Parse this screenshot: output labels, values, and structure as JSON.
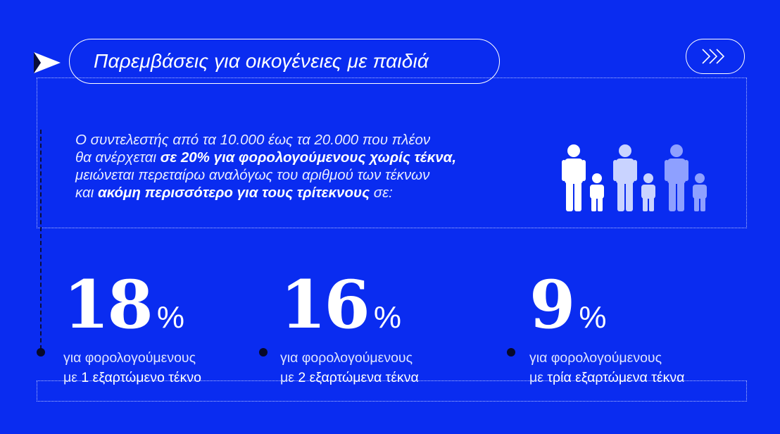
{
  "header": {
    "title": "Παρεμβάσεις για οικογένειες με παιδιά",
    "arrow_icon": "play-arrow-icon",
    "next_icon": "triple-chevron-right-icon"
  },
  "intro": {
    "line1": "Ο συντελεστής από τα 10.000 έως τα 20.000 που πλέον",
    "line2_plain": "θα ανέρχεται ",
    "line2_bold": "σε 20% για φορολογούμενους χωρίς τέκνα,",
    "line3": "μειώνεται περεταίρω αναλόγως του αριθμού των τέκνων",
    "line4_plain_a": "και ",
    "line4_bold": "ακόμη περισσότερο για τους τρίτεκνους",
    "line4_plain_b": " σε:"
  },
  "family_icon": "family-icon",
  "stats": [
    {
      "number": "18",
      "unit": "%",
      "desc1": "για φορολογούμενους",
      "desc2_plain": "με ",
      "desc2_bold": "1 εξαρτώμενο τέκνο"
    },
    {
      "number": "16",
      "unit": "%",
      "desc1": "για φορολογούμενους",
      "desc2_plain": "με ",
      "desc2_bold": "2 εξαρτώμενα τέκνα"
    },
    {
      "number": "9",
      "unit": "%",
      "desc1": "για φορολογούμενους",
      "desc2_plain": "με ",
      "desc2_bold": "τρία εξαρτώμενα τέκνα"
    }
  ],
  "colors": {
    "background": "#0a2cf0",
    "text": "#ffffff",
    "bullet": "#07092a",
    "family_light": "#ffffff",
    "family_mid": "#c9d3ff",
    "family_dim": "#8ea0ff"
  }
}
